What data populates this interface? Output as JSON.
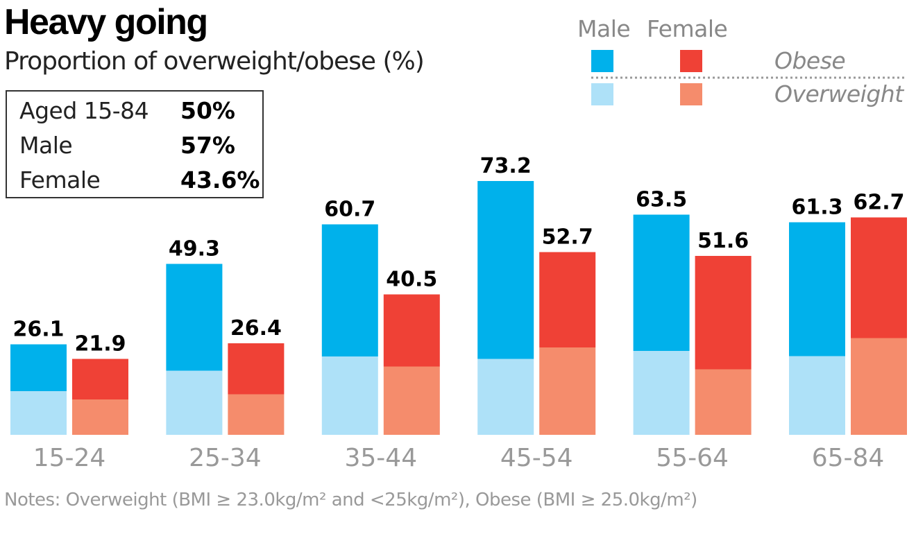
{
  "chart_data": {
    "type": "bar",
    "title": "Heavy going",
    "subtitle": "Proportion of overweight/obese (%)",
    "categories": [
      "15-24",
      "25-34",
      "35-44",
      "45-54",
      "55-64",
      "65-84"
    ],
    "series": [
      {
        "name": "Male",
        "totals": [
          26.1,
          49.3,
          60.7,
          73.2,
          63.5,
          61.3
        ],
        "overweight": [
          12.6,
          18.5,
          22.6,
          21.9,
          24.2,
          22.7
        ]
      },
      {
        "name": "Female",
        "totals": [
          21.9,
          26.4,
          40.5,
          52.7,
          51.6,
          62.7
        ],
        "overweight": [
          10.2,
          11.7,
          19.7,
          25.2,
          18.9,
          27.9
        ]
      }
    ],
    "components": [
      "Obese",
      "Overweight"
    ],
    "ylim": [
      0,
      80
    ],
    "legend": {
      "position": "top-right",
      "groups": [
        "Male",
        "Female"
      ],
      "components": [
        "Obese",
        "Overweight"
      ]
    },
    "colors": {
      "male_obese": "#00b1eb",
      "male_overweight": "#aee1f8",
      "female_obese": "#ef4136",
      "female_overweight": "#f58c6c"
    },
    "summary": [
      {
        "label": "Aged 15-84",
        "value": "50%"
      },
      {
        "label": "Male",
        "value": "57%"
      },
      {
        "label": "Female",
        "value": "43.6%"
      }
    ],
    "note": "Notes: Overweight (BMI ≥ 23.0kg/m² and <25kg/m²), Obese (BMI ≥ 25.0kg/m²)"
  }
}
